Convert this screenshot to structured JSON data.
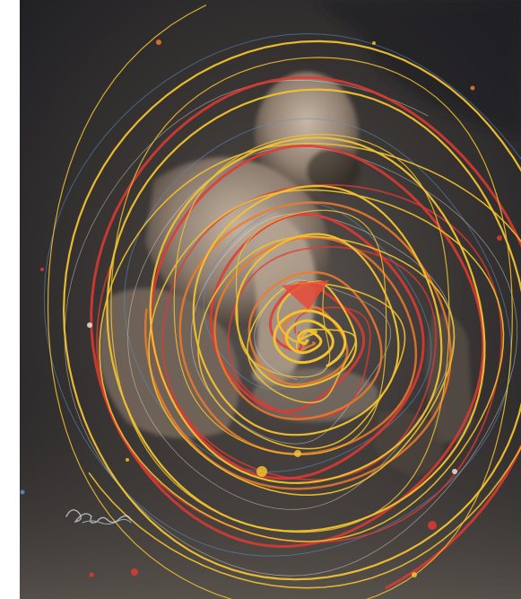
{
  "artwork": {
    "subject": "figure-with-spiral-paint-strokes",
    "signature": "Dupre 2020",
    "palette": {
      "background": "#2a2a2c",
      "figure_light": "#c9b8a6",
      "figure_shadow": "#4a4038",
      "yellow": "#f2c230",
      "orange": "#f07a2a",
      "red": "#e03a34",
      "blue": "#5b8fc9",
      "white_wisp": "#e8e4dc"
    }
  }
}
